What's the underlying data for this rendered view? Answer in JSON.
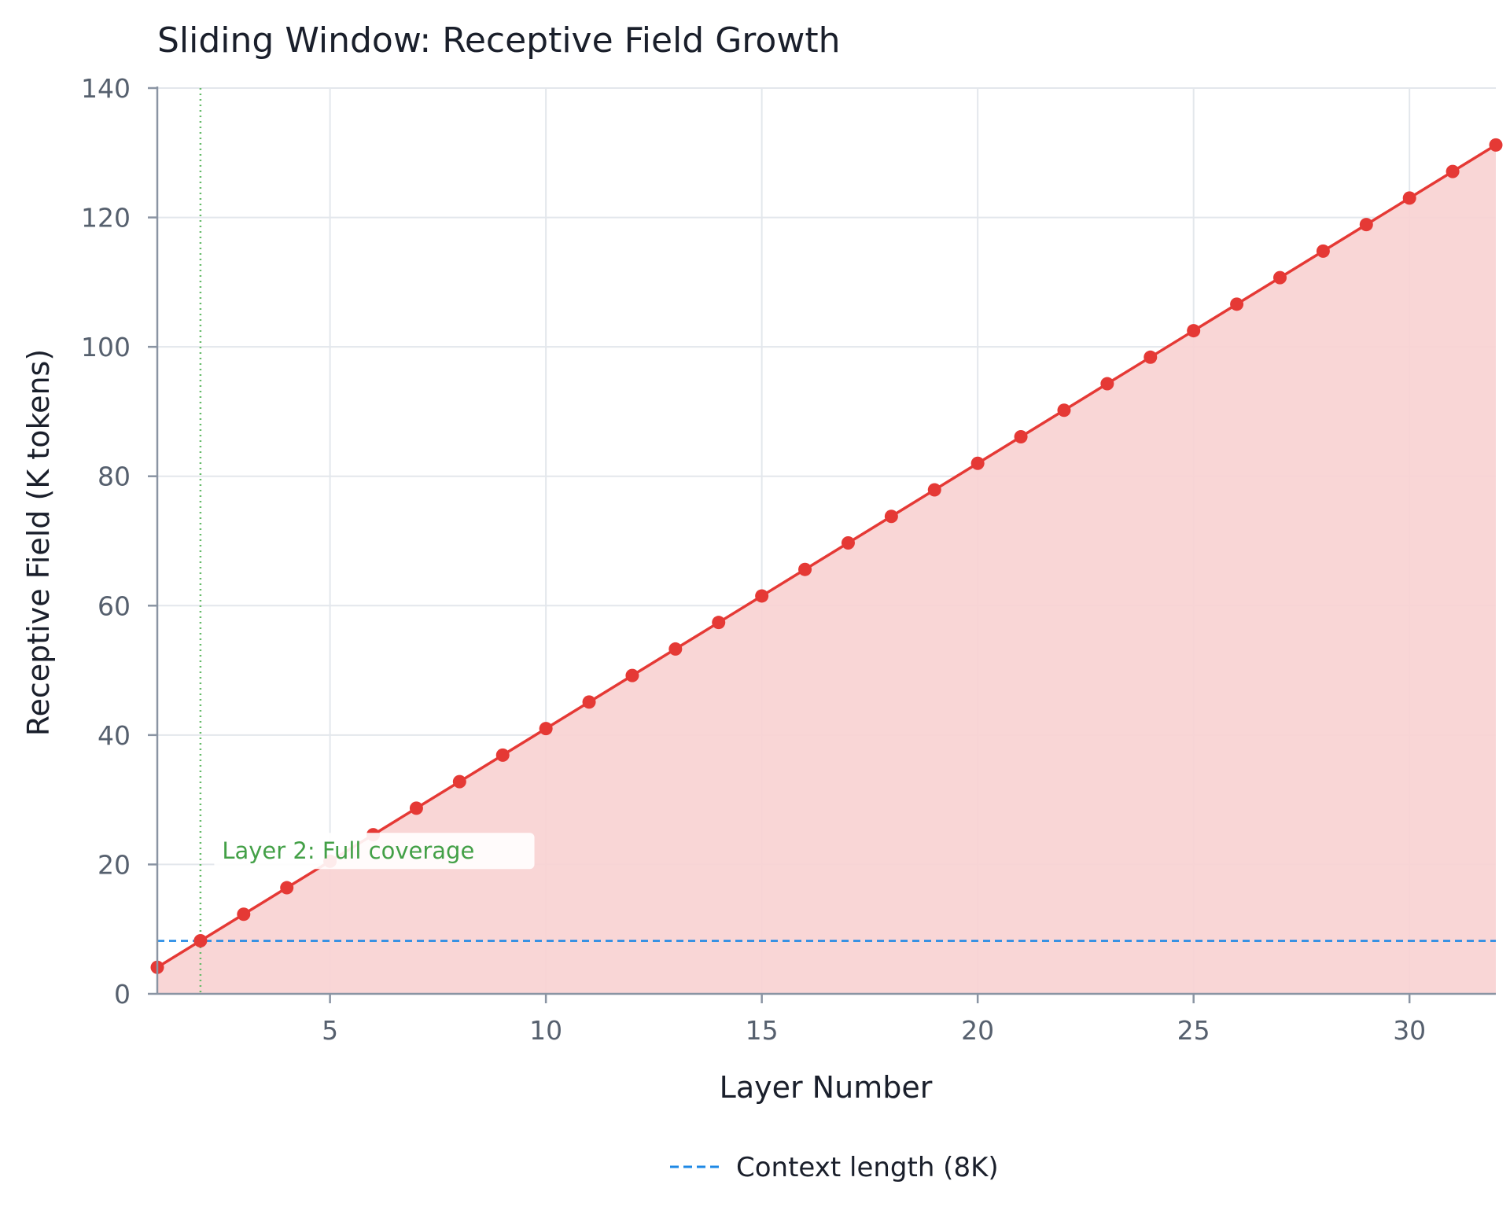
{
  "chart_data": {
    "type": "line",
    "title": "Sliding Window: Receptive Field Growth",
    "xlabel": "Layer Number",
    "ylabel": "Receptive Field (K tokens)",
    "xlim": [
      1,
      32
    ],
    "ylim": [
      0,
      140
    ],
    "x_ticks": [
      5,
      10,
      15,
      20,
      25,
      30
    ],
    "y_ticks": [
      0,
      20,
      40,
      60,
      80,
      100,
      120,
      140
    ],
    "grid": true,
    "series": [
      {
        "name": "",
        "color": "#e53935",
        "fill": true,
        "fill_color": "#f8d3d3",
        "marker": "circle",
        "x": [
          1,
          2,
          3,
          4,
          5,
          6,
          7,
          8,
          9,
          10,
          11,
          12,
          13,
          14,
          15,
          16,
          17,
          18,
          19,
          20,
          21,
          22,
          23,
          24,
          25,
          26,
          27,
          28,
          29,
          30,
          31,
          32
        ],
        "values": [
          4.1,
          8.2,
          12.3,
          16.4,
          20.5,
          24.6,
          28.7,
          32.8,
          36.9,
          41.0,
          45.1,
          49.2,
          53.3,
          57.4,
          61.5,
          65.6,
          69.7,
          73.8,
          77.9,
          82.0,
          86.1,
          90.2,
          94.3,
          98.4,
          102.5,
          106.6,
          110.7,
          114.8,
          118.9,
          123.0,
          127.1,
          131.2
        ]
      }
    ],
    "reference_lines": [
      {
        "orientation": "horizontal",
        "value": 8.192,
        "color": "#1e88e5",
        "style": "dashed",
        "label": "Context length (8K)"
      },
      {
        "orientation": "vertical",
        "value": 2,
        "color": "#66bb6a",
        "style": "dotted"
      }
    ],
    "annotations": [
      {
        "text": "Layer 2: Full coverage",
        "x": 2.5,
        "y": 21,
        "color": "#43a047"
      }
    ],
    "legend": {
      "placement": "bottom-center",
      "entries": [
        {
          "label": "Context length (8K)",
          "color": "#1e88e5",
          "style": "dashed"
        }
      ]
    }
  }
}
